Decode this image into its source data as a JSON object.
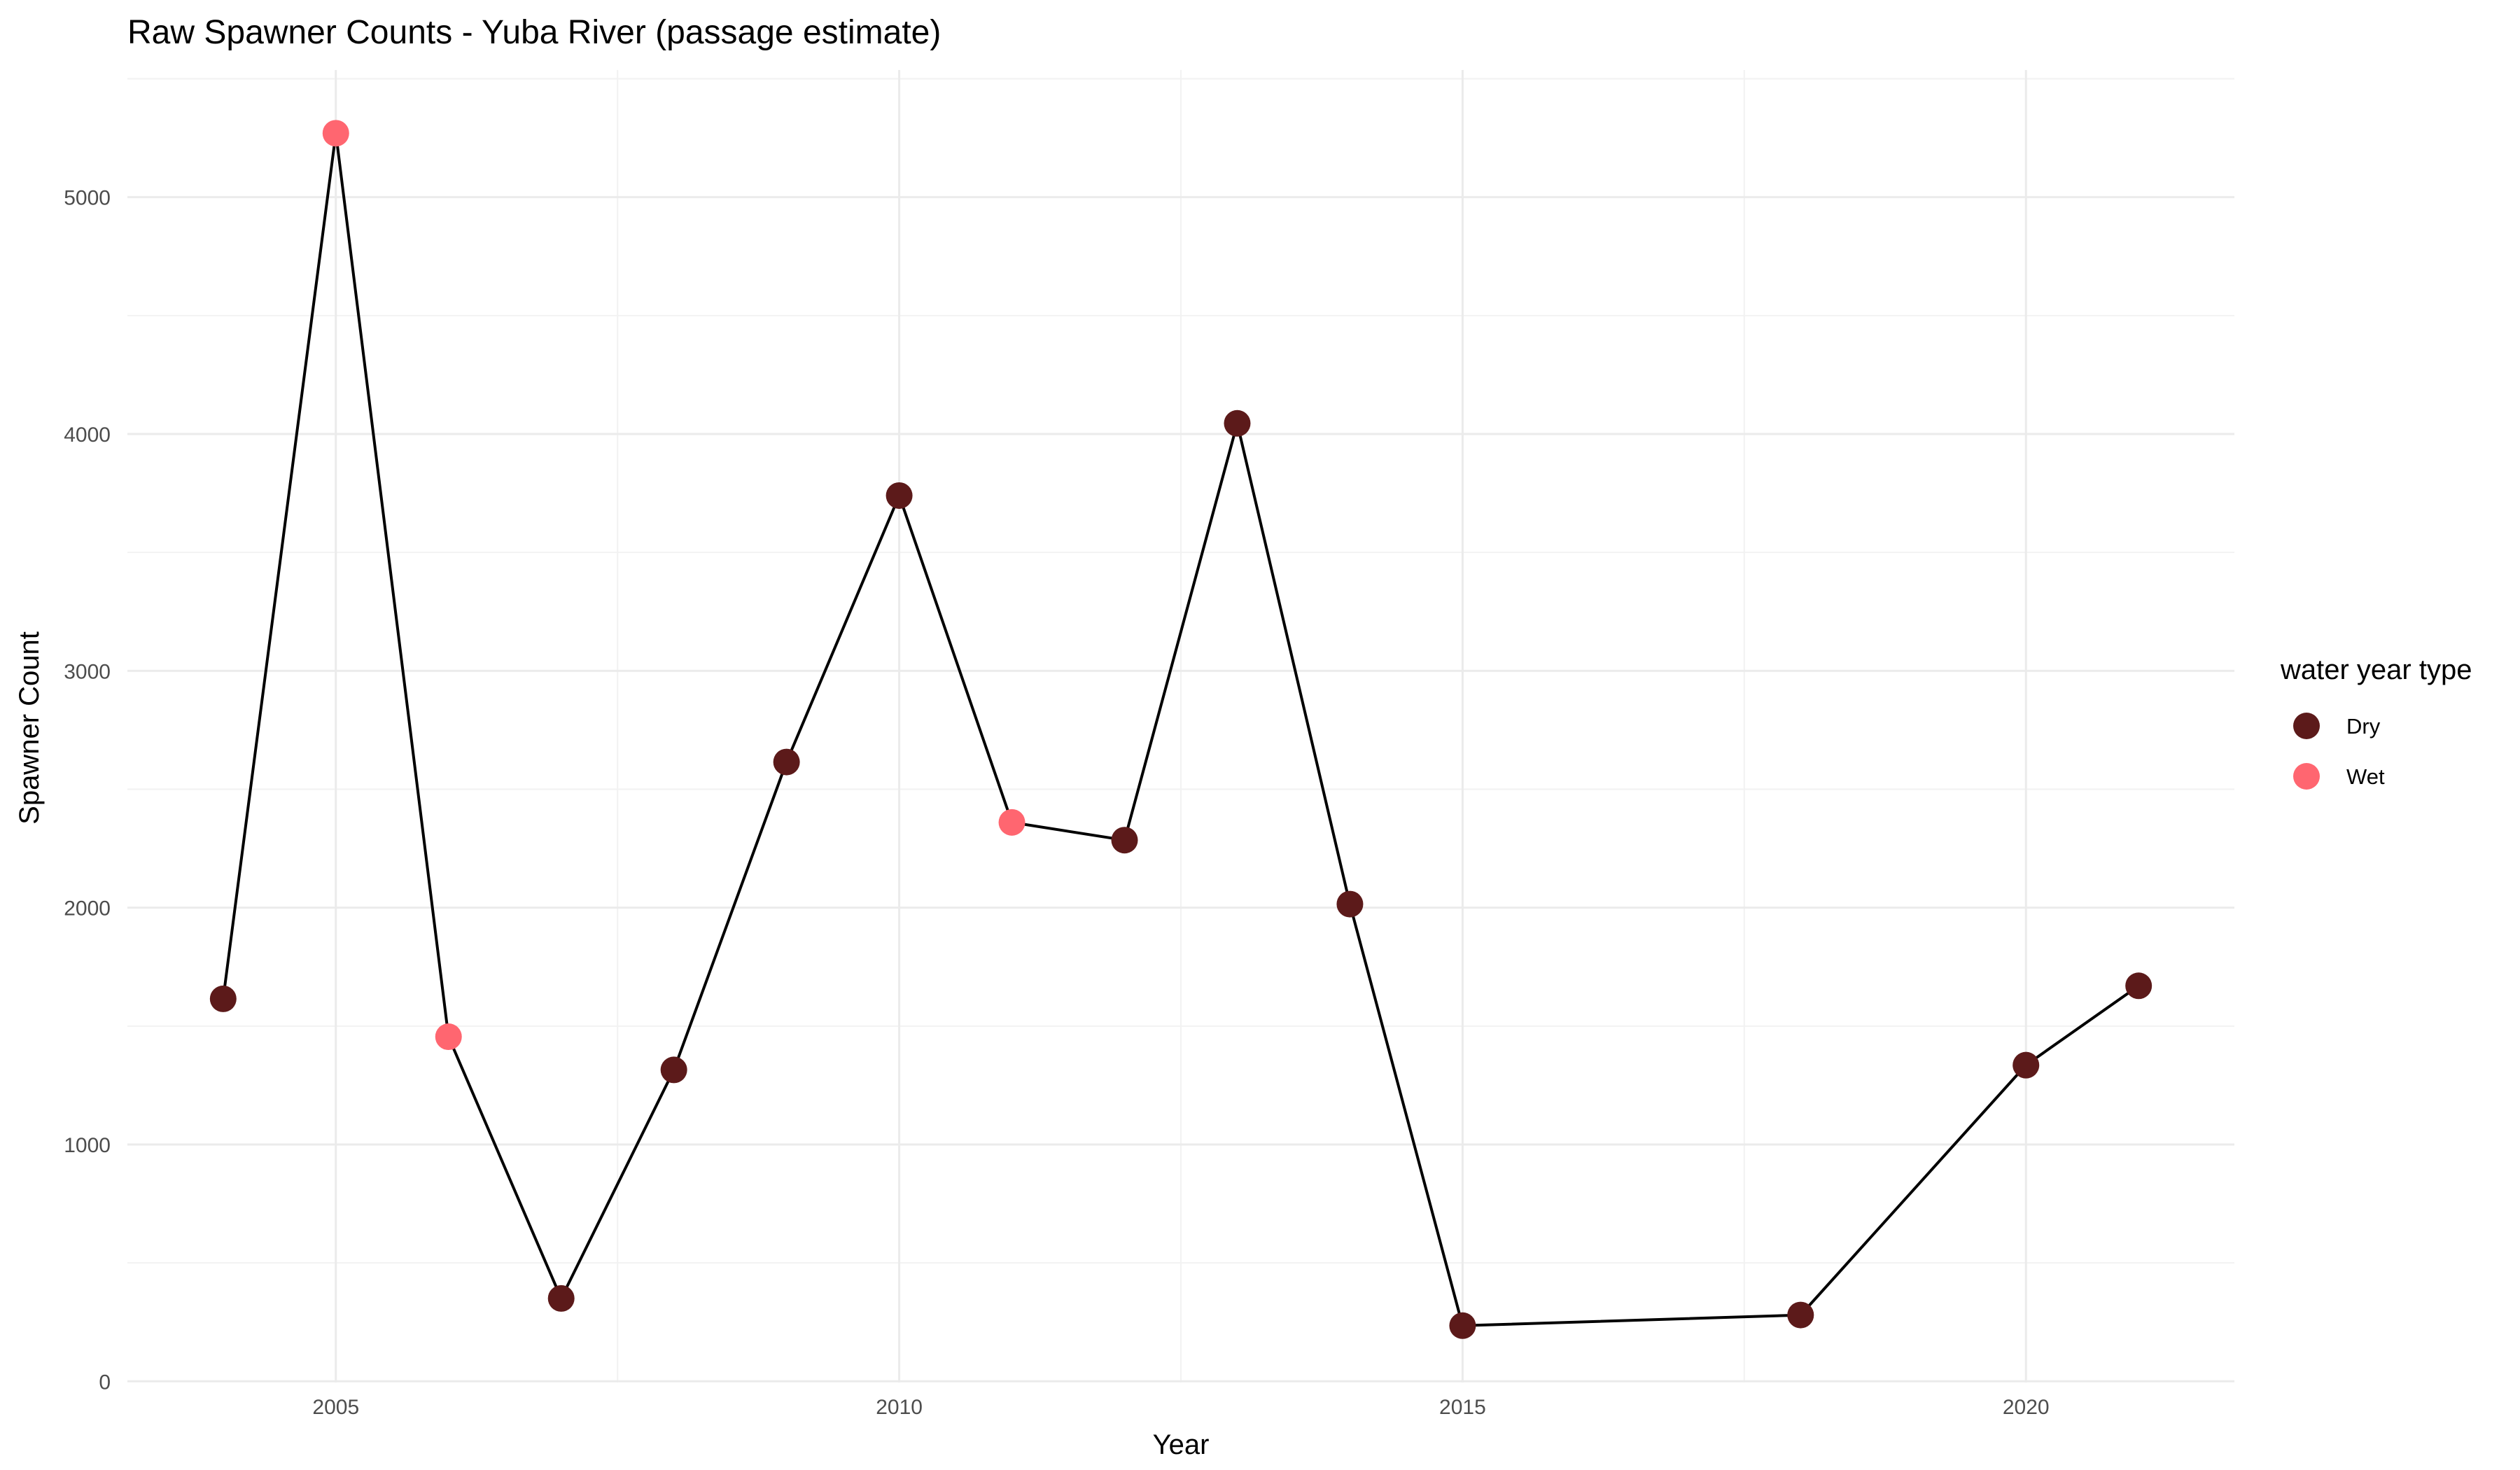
{
  "colors": {
    "background": "#ffffff",
    "grid_major": "#ebebeb",
    "grid_minor": "#f2f2f2",
    "line": "#000000",
    "text": "#4d4d4d"
  },
  "chart_data": {
    "type": "line",
    "title": "Raw Spawner Counts - Yuba River (passage estimate)",
    "xlabel": "Year",
    "ylabel": "Spawner Count",
    "xlim": [
      2003.15,
      2021.85
    ],
    "ylim": [
      -5,
      5537
    ],
    "x_ticks": [
      2005,
      2010,
      2015,
      2020
    ],
    "x_tick_labels": [
      "2005",
      "2010",
      "2015",
      "2020"
    ],
    "y_ticks": [
      0,
      1000,
      2000,
      3000,
      4000,
      5000
    ],
    "y_tick_labels": [
      "0",
      "1000",
      "2000",
      "3000",
      "4000",
      "5000"
    ],
    "grid": true,
    "legend": {
      "title": "water year type",
      "placement": "right",
      "entries": [
        {
          "label": "Dry",
          "color": "#5c1a1a"
        },
        {
          "label": "Wet",
          "color": "#ff6670"
        }
      ]
    },
    "series": [
      {
        "points": [
          {
            "x": 2004,
            "y": 1615,
            "type": "Dry"
          },
          {
            "x": 2005,
            "y": 5270,
            "type": "Wet"
          },
          {
            "x": 2006,
            "y": 1455,
            "type": "Wet"
          },
          {
            "x": 2007,
            "y": 350,
            "type": "Dry"
          },
          {
            "x": 2008,
            "y": 1315,
            "type": "Dry"
          },
          {
            "x": 2009,
            "y": 2615,
            "type": "Dry"
          },
          {
            "x": 2010,
            "y": 3740,
            "type": "Dry"
          },
          {
            "x": 2011,
            "y": 2360,
            "type": "Wet"
          },
          {
            "x": 2012,
            "y": 2285,
            "type": "Dry"
          },
          {
            "x": 2013,
            "y": 4045,
            "type": "Dry"
          },
          {
            "x": 2014,
            "y": 2015,
            "type": "Dry"
          },
          {
            "x": 2015,
            "y": 235,
            "type": "Dry"
          },
          {
            "x": 2018,
            "y": 280,
            "type": "Dry"
          },
          {
            "x": 2020,
            "y": 1335,
            "type": "Dry"
          },
          {
            "x": 2021,
            "y": 1670,
            "type": "Dry"
          }
        ]
      }
    ]
  }
}
